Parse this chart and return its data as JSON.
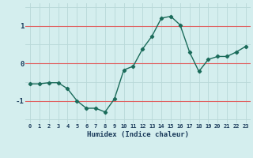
{
  "x": [
    0,
    1,
    2,
    3,
    4,
    5,
    6,
    7,
    8,
    9,
    10,
    11,
    12,
    13,
    14,
    15,
    16,
    17,
    18,
    19,
    20,
    21,
    22,
    23
  ],
  "y": [
    -0.55,
    -0.55,
    -0.52,
    -0.52,
    -0.68,
    -1.0,
    -1.2,
    -1.2,
    -1.3,
    -0.95,
    -0.18,
    -0.08,
    0.38,
    0.72,
    1.2,
    1.25,
    1.02,
    0.3,
    -0.22,
    0.1,
    0.18,
    0.18,
    0.3,
    0.45
  ],
  "xlabel": "Humidex (Indice chaleur)",
  "ylim": [
    -1.6,
    1.6
  ],
  "xlim": [
    -0.5,
    23.5
  ],
  "line_color": "#1a6b5a",
  "bg_color": "#d4eeee",
  "grid_color": "#b8d8d8",
  "red_line_color": "#e06060",
  "label_color": "#1a3a5a",
  "yticks": [
    -1,
    0,
    1
  ],
  "xticks": [
    0,
    1,
    2,
    3,
    4,
    5,
    6,
    7,
    8,
    9,
    10,
    11,
    12,
    13,
    14,
    15,
    16,
    17,
    18,
    19,
    20,
    21,
    22,
    23
  ]
}
